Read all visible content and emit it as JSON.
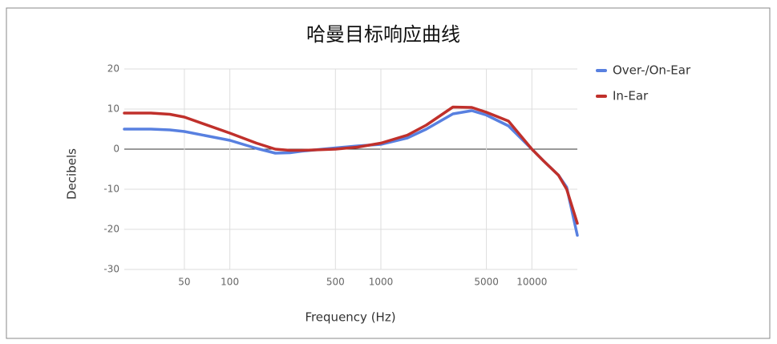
{
  "chart_data": {
    "type": "line",
    "title": "哈曼目标响应曲线",
    "x_label": "Frequency (Hz)",
    "y_label": "Decibels",
    "x": [
      20,
      30,
      40,
      50,
      100,
      150,
      200,
      250,
      300,
      500,
      700,
      1000,
      1500,
      2000,
      3000,
      4000,
      5000,
      7000,
      10000,
      12000,
      15000,
      17000,
      20000
    ],
    "series": [
      {
        "name": "Over-/On-Ear",
        "color": "#5880e0",
        "values": [
          5,
          5,
          4.8,
          4.4,
          2.2,
          0.2,
          -1,
          -0.9,
          -0.5,
          0.3,
          0.8,
          1.2,
          2.8,
          5,
          8.8,
          9.6,
          8.5,
          5.8,
          0,
          -3,
          -6.5,
          -9.5,
          -21.5
        ]
      },
      {
        "name": "In-Ear",
        "color": "#c0302b",
        "values": [
          9,
          9,
          8.7,
          8,
          4,
          1.5,
          0,
          -0.3,
          -0.3,
          0,
          0.5,
          1.5,
          3.5,
          6,
          10.5,
          10.4,
          9.2,
          7,
          0,
          -3,
          -6.5,
          -10,
          -18.5
        ]
      }
    ],
    "xscale": "log",
    "xlim": [
      20,
      20000
    ],
    "xticks": [
      50,
      100,
      500,
      1000,
      5000,
      10000
    ],
    "ylim": [
      -30,
      20
    ],
    "yticks": [
      -30,
      -20,
      -10,
      0,
      10,
      20
    ],
    "grid": true,
    "legend": "right"
  }
}
